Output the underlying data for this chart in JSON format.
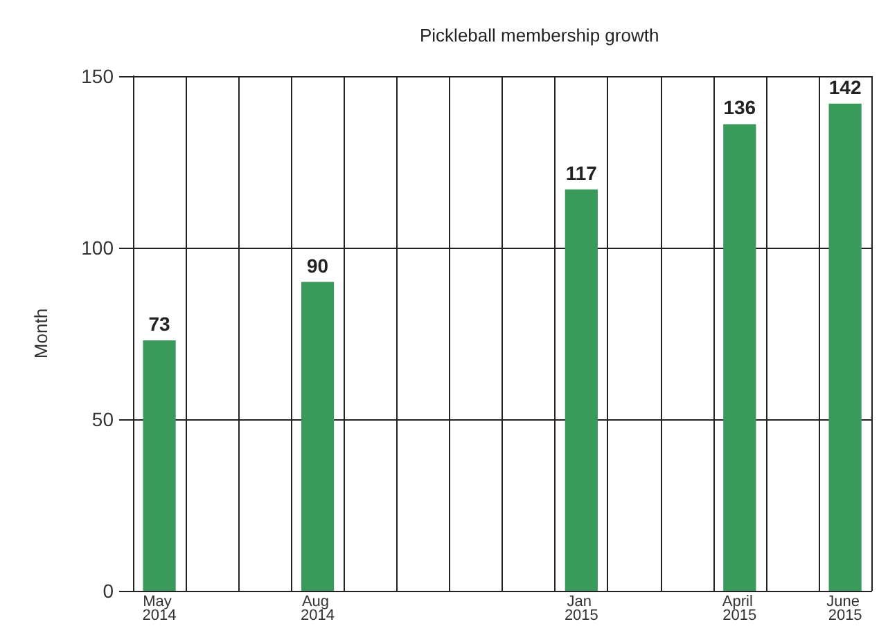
{
  "chart_data": {
    "type": "bar",
    "title": "Pickleball membership growth",
    "ylabel": "Month",
    "categories": [
      "May 2014",
      null,
      null,
      "Aug 2014",
      null,
      null,
      null,
      null,
      "Jan 2015",
      null,
      null,
      "April 2015",
      null,
      "June 2015"
    ],
    "values": [
      73,
      null,
      null,
      90,
      null,
      null,
      null,
      null,
      117,
      null,
      null,
      136,
      null,
      142
    ],
    "color": "#3a9a5c",
    "ylim": [
      0,
      150
    ],
    "yticks": [
      0,
      50,
      100,
      150
    ],
    "grid": true,
    "data_labels": true
  }
}
